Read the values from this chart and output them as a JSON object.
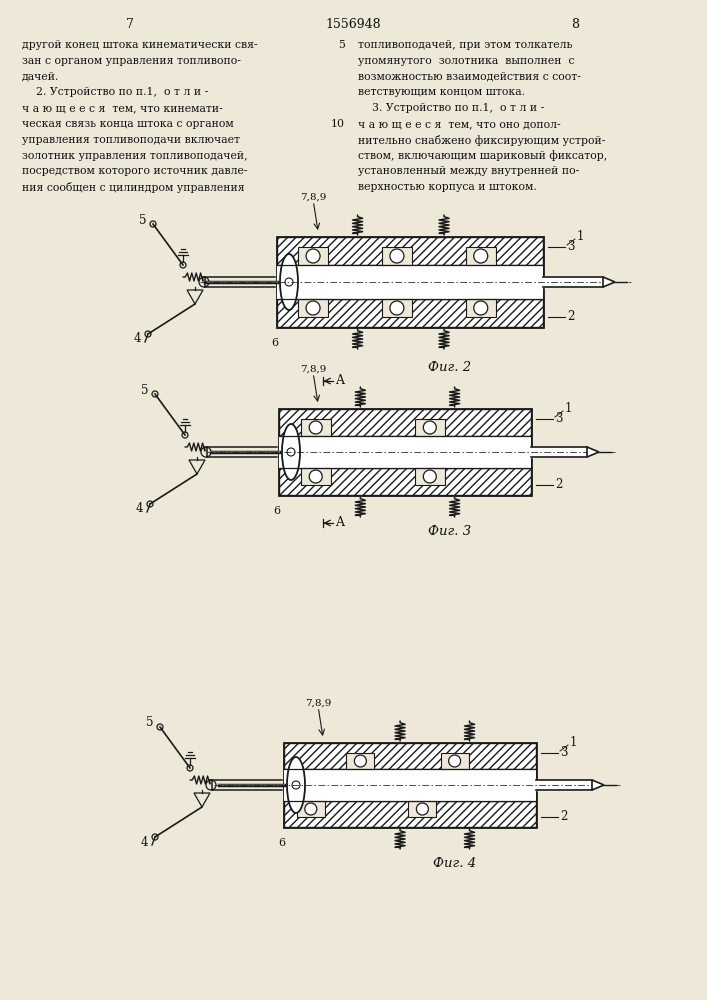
{
  "page_number_left": "7",
  "page_number_center": "1556948",
  "page_number_right": "8",
  "left_column_text": [
    "другой конец штока кинематически свя-",
    "зан с органом управления топливопо-",
    "дачей.",
    "    2. Устройство по п.1,  о т л и -",
    "ч а ю щ е е с я  тем, что кинемати-",
    "ческая связь конца штока с органом",
    "управления топливоподачи включает",
    "золотник управления топливоподачей,",
    "посредством которого источник давле-",
    "ния сообщен с цилиндром управления"
  ],
  "right_column_text": [
    "топливоподачей, при этом толкатель",
    "упомянутого  золотника  выполнен  с",
    "возможностью взаимодействия с соот-",
    "ветствующим концом штока.",
    "    3. Устройство по п.1,  о т л и -",
    "ч а ю щ е е с я  тем, что оно допол-",
    "нительно снабжено фиксирующим устрой-",
    "ством, включающим шариковый фиксатор,",
    "установленный между внутренней по-",
    "верхностью корпуса и штоком."
  ],
  "line_num_5": "5",
  "line_num_10": "10",
  "background_color": "#ede8d8",
  "line_color": "#1a1a1a",
  "text_color": "#111111",
  "fig2_label": "Фиг. 2",
  "fig3_label": "Фиг. 3",
  "fig4_label": "Фиг. 4"
}
